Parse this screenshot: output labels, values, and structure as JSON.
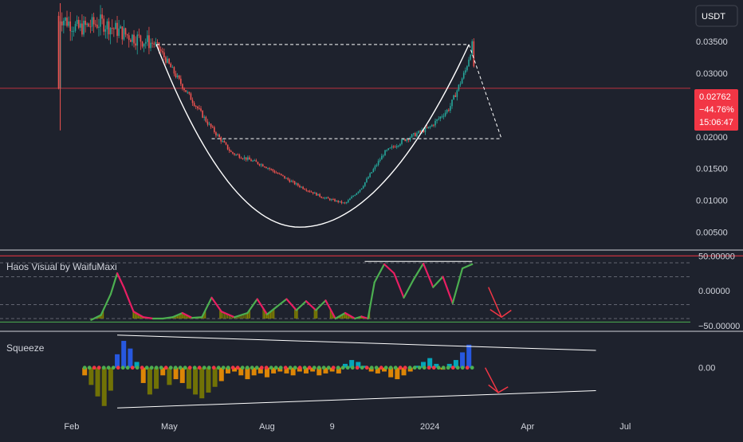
{
  "currency_button": "USDT",
  "colors": {
    "background": "#1e222d",
    "up_candle": "#26a69a",
    "down_candle": "#ef5350",
    "price_line": "#f23645",
    "pattern_line": "#ffffff",
    "osc_green": "#4caf50",
    "osc_pink": "#e91e63",
    "arrow": "#f23645",
    "squeeze_blue": "#2962ff",
    "squeeze_orange": "#ff9800",
    "squeeze_olive": "#808000"
  },
  "price_badge": {
    "price": "0.02762",
    "change": "−44.76%",
    "countdown": "15:06:47"
  },
  "chart_data": [
    {
      "type": "candlestick",
      "pane": "price",
      "y_ticks": [
        "0.03500",
        "0.03000",
        "0.02000",
        "0.01500",
        "0.01000",
        "0.00500"
      ],
      "y_tick_values": [
        0.035,
        0.03,
        0.02,
        0.015,
        0.01,
        0.005
      ],
      "ylim": [
        0.0022,
        0.0415
      ],
      "x_ticks": [
        "Feb",
        "May",
        "Aug",
        "9",
        "2024",
        "Apr",
        "Jul"
      ],
      "x_tick_positions": [
        1.6,
        4.6,
        7.6,
        9.6,
        12.6,
        15.6,
        18.6
      ],
      "x_range": [
        -0.6,
        20.6
      ],
      "last_price": 0.02762,
      "approx_price_path": [
        [
          1.2,
          0.039
        ],
        [
          1.8,
          0.037
        ],
        [
          2.5,
          0.038
        ],
        [
          3.3,
          0.036
        ],
        [
          4.2,
          0.0345
        ],
        [
          5.0,
          0.028
        ],
        [
          5.8,
          0.022
        ],
        [
          6.5,
          0.0175
        ],
        [
          7.5,
          0.0155
        ],
        [
          8.5,
          0.0125
        ],
        [
          9.3,
          0.0105
        ],
        [
          10.0,
          0.0095
        ],
        [
          10.5,
          0.012
        ],
        [
          11.2,
          0.0175
        ],
        [
          11.8,
          0.0195
        ],
        [
          12.6,
          0.0215
        ],
        [
          13.2,
          0.0245
        ],
        [
          13.7,
          0.0305
        ],
        [
          13.9,
          0.0345
        ],
        [
          14.0,
          0.0276
        ]
      ],
      "cup_curve": {
        "left": [
          4.2,
          0.0345
        ],
        "bottom": [
          8.6,
          0.0058
        ],
        "right": [
          13.8,
          0.0345
        ]
      },
      "resistance_line": {
        "x": [
          4.2,
          13.8
        ],
        "y": 0.0345
      },
      "support_line": {
        "x": [
          5.9,
          14.8
        ],
        "y": 0.0197
      },
      "projection": [
        [
          13.8,
          0.0345
        ],
        [
          14.8,
          0.0197
        ]
      ]
    },
    {
      "type": "line",
      "pane": "oscillator",
      "title": "Haos Visual by WaifuMaxi",
      "y_ticks": [
        "50.00000",
        "0.00000",
        "−50.00000"
      ],
      "y_tick_values": [
        50,
        0,
        -50
      ],
      "ylim": [
        -56,
        56
      ],
      "levels": [
        40,
        20,
        -20,
        -40
      ],
      "x": [
        2.2,
        2.5,
        2.8,
        3.0,
        3.2,
        3.5,
        3.8,
        4.1,
        4.4,
        4.7,
        5.0,
        5.3,
        5.6,
        5.9,
        6.2,
        6.6,
        7.0,
        7.3,
        7.6,
        7.9,
        8.2,
        8.5,
        8.8,
        9.1,
        9.4,
        9.7,
        10.0,
        10.3,
        10.5,
        10.7,
        10.9,
        11.2,
        11.5,
        11.8,
        12.1,
        12.4,
        12.7,
        13.0,
        13.3,
        13.6,
        13.9
      ],
      "y": [
        -42,
        -35,
        -5,
        25,
        5,
        -30,
        -38,
        -40,
        -40,
        -38,
        -32,
        -39,
        -38,
        -10,
        -30,
        -38,
        -32,
        -12,
        -34,
        -23,
        -12,
        -28,
        -15,
        -28,
        -14,
        -40,
        -32,
        -40,
        -37,
        -40,
        12,
        38,
        25,
        -10,
        16,
        39,
        5,
        20,
        -18,
        32,
        38
      ],
      "resistance": {
        "x": [
          10.6,
          13.9
        ],
        "y": 42
      }
    },
    {
      "type": "bar",
      "pane": "squeeze",
      "title": "Squeeze",
      "y_ticks": [
        "0.00"
      ],
      "y_tick_values": [
        0
      ],
      "ylim": [
        -23,
        19
      ],
      "x": [
        2.0,
        2.2,
        2.4,
        2.6,
        2.8,
        3.0,
        3.2,
        3.4,
        3.6,
        3.8,
        4.0,
        4.2,
        4.4,
        4.6,
        4.8,
        5.0,
        5.2,
        5.4,
        5.6,
        5.8,
        6.0,
        6.2,
        6.4,
        6.6,
        6.8,
        7.0,
        7.2,
        7.4,
        7.6,
        7.8,
        8.0,
        8.2,
        8.4,
        8.6,
        8.8,
        9.0,
        9.2,
        9.4,
        9.6,
        9.8,
        10.0,
        10.2,
        10.4,
        10.6,
        10.8,
        11.0,
        11.2,
        11.4,
        11.6,
        11.8,
        12.0,
        12.2,
        12.4,
        12.6,
        12.8,
        13.0,
        13.2,
        13.4,
        13.6,
        13.8
      ],
      "values": [
        -4,
        -9,
        -15,
        -20,
        -12,
        7,
        14,
        10,
        3,
        -8,
        -14,
        -11,
        -4,
        -9,
        -6,
        -8,
        -11,
        -14,
        -16,
        -13,
        -10,
        -7,
        -3,
        -2,
        -4,
        -6,
        -4,
        -3,
        -5,
        -3,
        -2,
        -3,
        -4,
        -2,
        -3,
        -2,
        -4,
        -3,
        -2,
        -3,
        2,
        4,
        3,
        1,
        -2,
        -3,
        -2,
        -5,
        -6,
        -4,
        -2,
        1,
        3,
        5,
        2,
        -1,
        2,
        4,
        8,
        12
      ],
      "upper_line": [
        [
          3.0,
          17
        ],
        [
          17.7,
          9
        ]
      ],
      "lower_line": [
        [
          3.0,
          -21
        ],
        [
          17.7,
          -12
        ]
      ],
      "squeeze_dot_x": [
        2.0,
        13.9
      ]
    }
  ]
}
